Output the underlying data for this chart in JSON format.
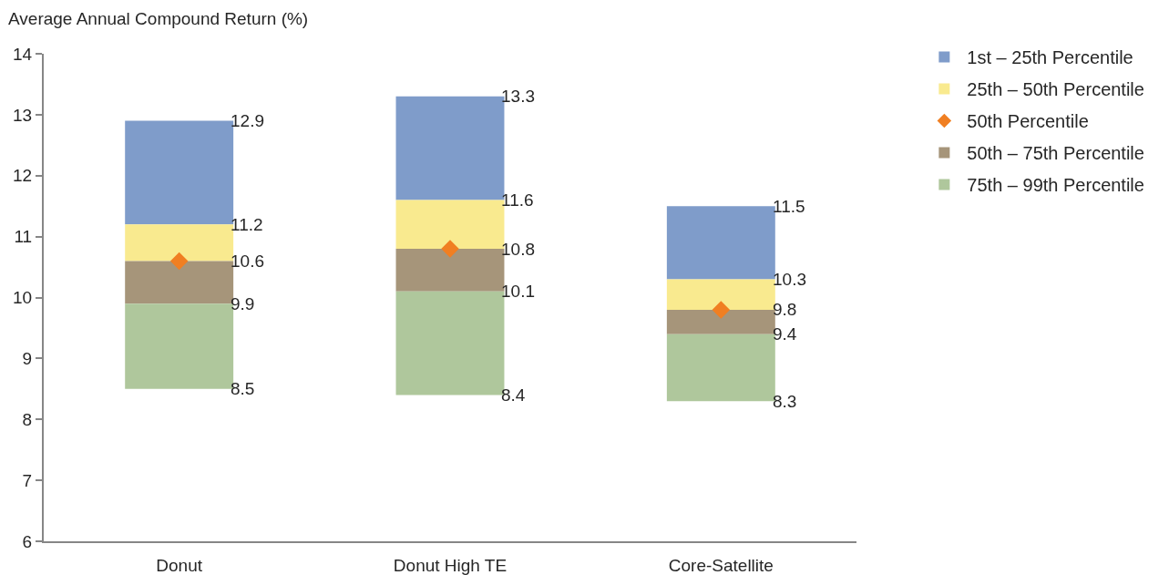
{
  "chart_data": {
    "type": "bar",
    "ylabel": "Average Annual Compound Return (%)",
    "categories": [
      "Donut",
      "Donut High TE",
      "Core-Satellite"
    ],
    "series": [
      {
        "name": "1st – 25th Percentile",
        "color": "#7f9cca",
        "base": [
          11.2,
          11.6,
          10.3
        ],
        "values": [
          1.7,
          1.7,
          1.2
        ],
        "value_labels": [
          "12.9",
          "13.3",
          "11.5"
        ]
      },
      {
        "name": "25th – 50th Percentile",
        "color": "#f9ea8f",
        "base": [
          10.6,
          10.8,
          9.8
        ],
        "values": [
          0.6,
          0.8,
          0.5
        ],
        "value_labels": [
          "11.2",
          "11.6",
          "10.3"
        ]
      },
      {
        "name": "50th Percentile",
        "type": "scatter",
        "color": "#f07f22",
        "x": [
          "Donut",
          "Donut High TE",
          "Core-Satellite"
        ],
        "values": [
          10.6,
          10.8,
          9.8
        ]
      },
      {
        "name": "50th – 75th Percentile",
        "color": "#a6957a",
        "base": [
          9.9,
          10.1,
          9.4
        ],
        "values": [
          0.7,
          0.7,
          0.4
        ],
        "value_labels": [
          "10.6",
          "10.8",
          "9.8"
        ]
      },
      {
        "name": "75th – 99th Percentile",
        "color": "#afc79c",
        "base": [
          8.5,
          8.4,
          8.3
        ],
        "values": [
          1.4,
          1.7,
          1.1
        ],
        "value_labels": [
          "9.9",
          "10.1",
          "9.4"
        ]
      }
    ],
    "ylim": [
      6,
      14
    ],
    "yticks": [
      6,
      7,
      8,
      9,
      10,
      11,
      12,
      13,
      14
    ],
    "marker": "diamond",
    "legend": "top right",
    "annotations": [
      {
        "text": "8.5",
        "x": "Donut",
        "y": 8.5
      },
      {
        "text": "8.4",
        "x": "Donut High TE",
        "y": 8.4
      },
      {
        "text": "8.3",
        "x": "Core-Satellite",
        "y": 8.3
      }
    ]
  }
}
